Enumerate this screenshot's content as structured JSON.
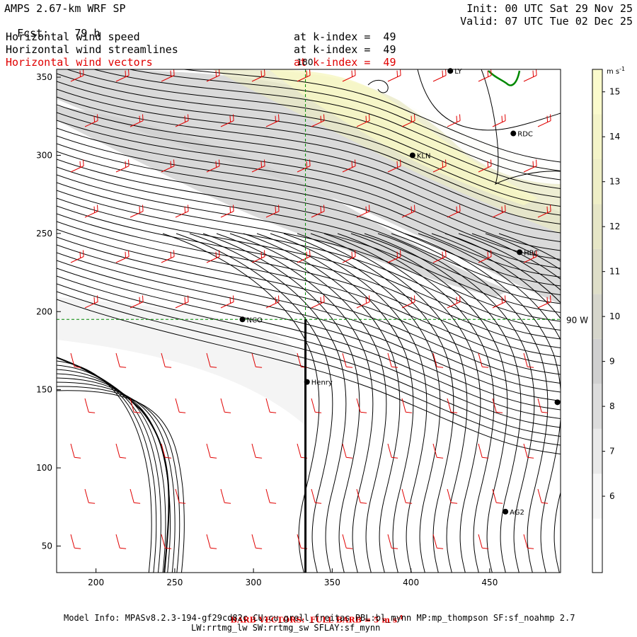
{
  "header": {
    "model": "AMPS 2.67-km WRF SP",
    "fcst_label": "Fcst:",
    "fcst_value": "79 h",
    "init": "Init: 00 UTC Sat 29 Nov 25",
    "valid": "Valid: 07 UTC Tue 02 Dec 25"
  },
  "fields": [
    {
      "name": "Horizontal wind speed",
      "level": "at k-index =  49",
      "color": "#000000"
    },
    {
      "name": "Horizontal wind streamlines",
      "level": "at k-index =  49",
      "color": "#000000"
    },
    {
      "name": "Horizontal wind vectors",
      "level": "at k-index =  49",
      "color": "#e00000"
    }
  ],
  "axes": {
    "x_ticks": [
      "200",
      "250",
      "300",
      "350",
      "400",
      "450"
    ],
    "x_values": [
      200,
      250,
      300,
      350,
      400,
      450
    ],
    "x_range": [
      175,
      495
    ],
    "y_ticks": [
      "350",
      "300",
      "250",
      "200",
      "150",
      "100",
      "50"
    ],
    "y_values": [
      350,
      300,
      250,
      200,
      150,
      100,
      50
    ],
    "y_range": [
      33,
      355
    ],
    "meridian_label": "180",
    "meridian_x": 333,
    "parallel_label": "90 W",
    "parallel_y": 195
  },
  "stations": [
    {
      "id": "LYT",
      "label": "LY",
      "x": 425,
      "y": 354
    },
    {
      "id": "RDC",
      "label": "RDC",
      "x": 465,
      "y": 314
    },
    {
      "id": "KLN",
      "label": "KLN",
      "x": 401,
      "y": 300
    },
    {
      "id": "HRC",
      "label": "HRC",
      "x": 469,
      "y": 238
    },
    {
      "id": "NCO",
      "label": "NCO",
      "x": 293,
      "y": 195
    },
    {
      "id": "Henry",
      "label": "Henry",
      "x": 334,
      "y": 155
    },
    {
      "id": "AG2",
      "label": "AG2",
      "x": 460,
      "y": 72
    },
    {
      "id": "EDGE",
      "label": "",
      "x": 493,
      "y": 142
    }
  ],
  "colorbar": {
    "units": "m s-1",
    "unit_main": "m s",
    "unit_exp": "-1",
    "labels": [
      "15",
      "14",
      "13",
      "12",
      "11",
      "10",
      "9",
      "8",
      "7",
      "6"
    ],
    "levels": [
      5,
      6,
      7,
      8,
      9,
      10,
      11,
      12,
      13,
      14,
      15,
      16
    ],
    "colors": [
      "#ffffff",
      "#f6f6f6",
      "#e9e9e9",
      "#dcdcdc",
      "#d0d0d0",
      "#d6d6cc",
      "#dedec8",
      "#e6e6c6",
      "#eeeec6",
      "#f4f4c8",
      "#fafacc"
    ]
  },
  "footer": {
    "barb_note": "BARB VECTORS:  FULL BARB = 5 m s",
    "barb_exp": "-1",
    "model_info": "Model Info: MPASv8.2.3-194-gf29cd82c CU:cu_grell_freitas PBL:bl_mynn MP:mp_thompson SF:sf_noahmp 2.7",
    "model_info_2": "LW:rrtmg_lw SW:rrtmg_sw SFLAY:sf_mynn"
  },
  "colors": {
    "barb": "#e00000",
    "grid": "#008800",
    "coast": "#008800"
  }
}
